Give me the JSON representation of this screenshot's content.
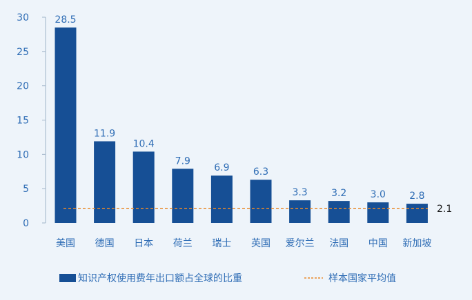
{
  "chart_data": {
    "type": "bar",
    "categories": [
      "美国",
      "德国",
      "日本",
      "荷兰",
      "瑞士",
      "英国",
      "爱尔兰",
      "法国",
      "中国",
      "新加坡"
    ],
    "series": [
      {
        "name": "知识产权使用费年出口额占全球的比重",
        "values": [
          28.5,
          11.9,
          10.4,
          7.9,
          6.9,
          6.3,
          3.3,
          3.2,
          3.0,
          2.8
        ],
        "value_labels": [
          "28.5",
          "11.9",
          "10.4",
          "7.9",
          "6.9",
          "6.3",
          "3.3",
          "3.2",
          "3.0",
          "2.8"
        ]
      }
    ],
    "reference_line": {
      "name": "样本国家平均值",
      "value": 2.1,
      "label": "2.1",
      "style": "dashed"
    },
    "ylim": [
      0,
      30
    ],
    "yticks": [
      0,
      5,
      10,
      15,
      20,
      25,
      30
    ],
    "ytick_labels": [
      "0",
      "5",
      "10",
      "15",
      "20",
      "25",
      "30"
    ],
    "xlabel": "",
    "ylabel": "",
    "grid": false,
    "legend_position": "bottom",
    "colors": {
      "bar": "#164f95",
      "reference_line": "#e8892b",
      "text": "#2f6db5",
      "axis": "#9fb3c8",
      "background": "#eef4fa"
    }
  }
}
